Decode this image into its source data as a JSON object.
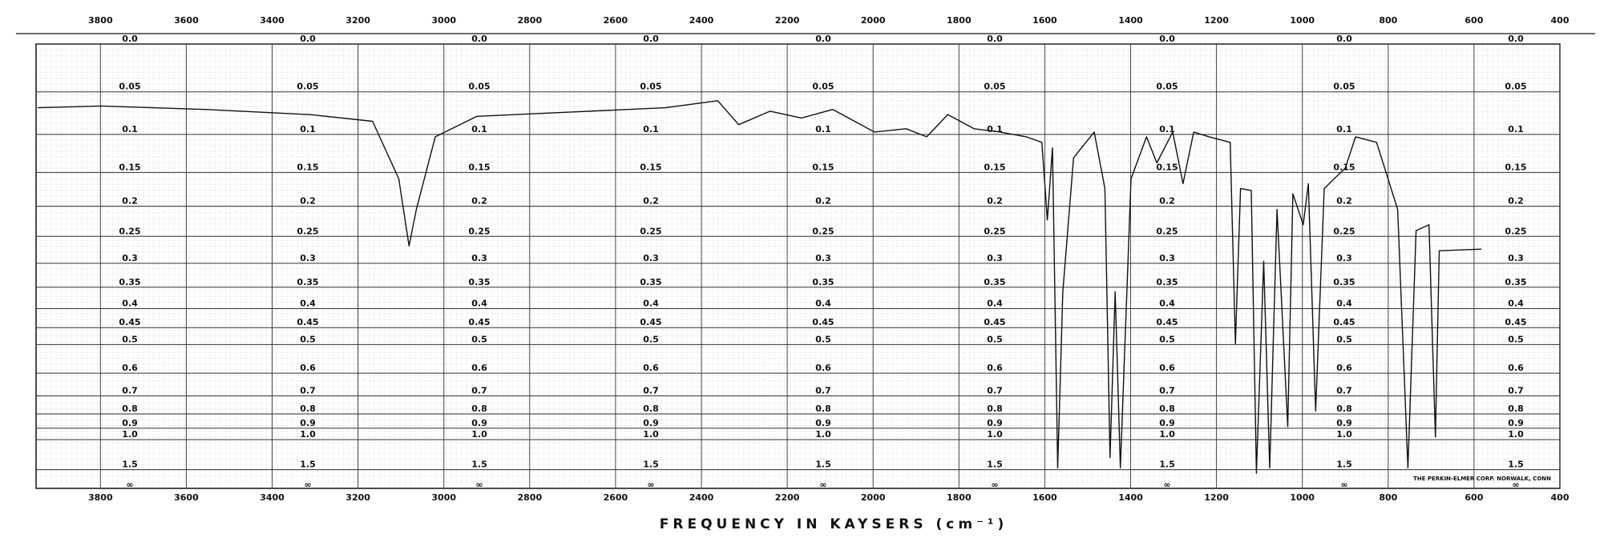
{
  "chart_data": {
    "type": "line",
    "x_label": "FREQUENCY IN KAYSERS (cm⁻¹)",
    "credit": "THE PERKIN-ELMER CORP. NORWALK, CONN",
    "xlim": [
      3950,
      400
    ],
    "xticks": [
      3800,
      3600,
      3400,
      3200,
      3000,
      2800,
      2600,
      2400,
      2200,
      2000,
      1800,
      1600,
      1400,
      1200,
      1000,
      800,
      600,
      400
    ],
    "y_scale": "transmittance",
    "yticks": [
      {
        "value": 0,
        "label": "0.0"
      },
      0.05,
      0.1,
      0.15,
      0.2,
      0.25,
      0.3,
      0.35,
      0.4,
      0.45,
      0.5,
      0.6,
      0.7,
      0.8,
      0.9,
      {
        "value": 1,
        "label": "1.0"
      },
      1.5
    ],
    "y_end_label": "∞",
    "grid": true,
    "series": [
      {
        "color": "#111111",
        "x": [
          3946,
          3800,
          3556,
          3313,
          3166,
          3105,
          3081,
          3064,
          3020,
          2923,
          2703,
          2484,
          2362,
          2313,
          2240,
          2167,
          2094,
          1997,
          1923,
          1875,
          1826,
          1765,
          1704,
          1643,
          1607,
          1594,
          1582,
          1570,
          1558,
          1533,
          1485,
          1460,
          1448,
          1436,
          1424,
          1399,
          1363,
          1339,
          1302,
          1278,
          1253,
          1217,
          1168,
          1156,
          1144,
          1119,
          1107,
          1090,
          1076,
          1059,
          1034,
          1022,
          998,
          986,
          969,
          949,
          900,
          876,
          827,
          778,
          754,
          735,
          705,
          690,
          681,
          583
        ],
        "values": [
          0.068,
          0.066,
          0.07,
          0.076,
          0.084,
          0.159,
          0.267,
          0.205,
          0.103,
          0.078,
          0.073,
          0.068,
          0.06,
          0.088,
          0.072,
          0.08,
          0.07,
          0.097,
          0.093,
          0.103,
          0.076,
          0.093,
          0.097,
          0.103,
          0.11,
          0.222,
          0.117,
          1.45,
          0.36,
          0.13,
          0.097,
          0.173,
          1.23,
          0.36,
          1.45,
          0.159,
          0.103,
          0.137,
          0.097,
          0.166,
          0.097,
          0.103,
          0.11,
          0.498,
          0.173,
          0.176,
          1.63,
          0.296,
          1.45,
          0.205,
          0.888,
          0.181,
          0.23,
          0.166,
          0.783,
          0.173,
          0.144,
          0.103,
          0.11,
          0.205,
          1.45,
          0.24,
          0.23,
          0.975,
          0.276,
          0.273
        ]
      }
    ]
  }
}
